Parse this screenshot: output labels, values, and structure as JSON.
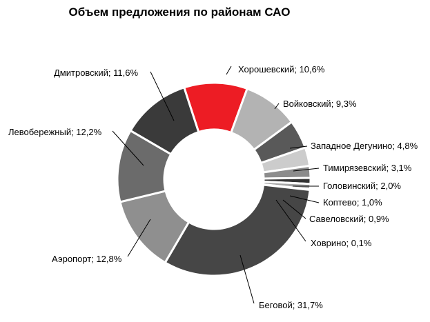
{
  "chart_data": {
    "type": "pie",
    "title": "Объем предложения по районам САО",
    "slices": [
      {
        "label": "Хорошевский; 10,6%",
        "value": 10.6,
        "color": "#ed1c24"
      },
      {
        "label": "Войковский; 9,3%",
        "value": 9.3,
        "color": "#b3b3b3"
      },
      {
        "label": "Западное Дегунино; 4,8%",
        "value": 4.8,
        "color": "#595959"
      },
      {
        "label": "Тимирязевский; 3,1%",
        "value": 3.1,
        "color": "#cccccc"
      },
      {
        "label": "Головинский; 2,0%",
        "value": 2.0,
        "color": "#8c8c8c"
      },
      {
        "label": "Коптево; 1,0%",
        "value": 1.0,
        "color": "#333333"
      },
      {
        "label": "Савеловский; 0,9%",
        "value": 0.9,
        "color": "#a6a6a6"
      },
      {
        "label": "Ховрино; 0,1%",
        "value": 0.1,
        "color": "#777777"
      },
      {
        "label": "Беговой; 31,7%",
        "value": 31.7,
        "color": "#464646"
      },
      {
        "label": "Аэропорт; 12,8%",
        "value": 12.8,
        "color": "#8f8f8f"
      },
      {
        "label": "Левобережный; 12,2%",
        "value": 12.2,
        "color": "#6b6b6b"
      },
      {
        "label": "Дмитровский; 11,6%",
        "value": 11.6,
        "color": "#3a3a3a"
      }
    ]
  }
}
